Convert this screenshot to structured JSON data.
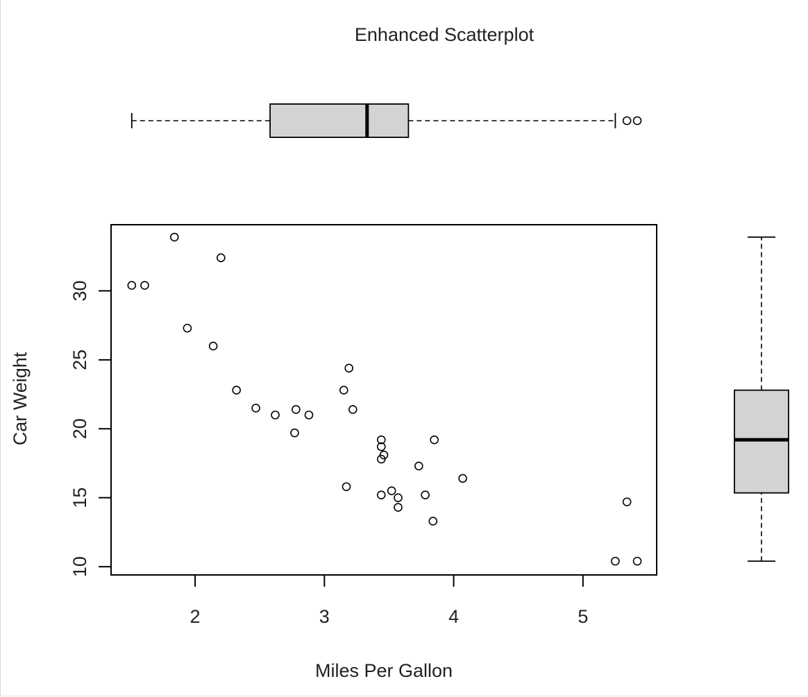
{
  "chart_data": {
    "type": "scatter",
    "title": "Enhanced Scatterplot",
    "xlabel": "Miles Per Gallon",
    "ylabel": "Car Weight",
    "xlim": [
      1.35,
      5.57
    ],
    "ylim": [
      9.4,
      34.8
    ],
    "xticks": [
      2,
      3,
      4,
      5
    ],
    "yticks": [
      10,
      15,
      20,
      25,
      30
    ],
    "grid": false,
    "legend": "none",
    "series": [
      {
        "points": [
          [
            1.51,
            30.4
          ],
          [
            1.61,
            30.4
          ],
          [
            1.84,
            33.9
          ],
          [
            1.94,
            27.3
          ],
          [
            2.14,
            26.0
          ],
          [
            2.2,
            32.4
          ],
          [
            2.32,
            22.8
          ],
          [
            2.47,
            21.5
          ],
          [
            2.62,
            21.0
          ],
          [
            2.77,
            19.7
          ],
          [
            2.78,
            21.4
          ],
          [
            2.88,
            21.0
          ],
          [
            3.15,
            22.8
          ],
          [
            3.17,
            15.8
          ],
          [
            3.19,
            24.4
          ],
          [
            3.22,
            21.4
          ],
          [
            3.44,
            19.2
          ],
          [
            3.44,
            18.7
          ],
          [
            3.44,
            17.8
          ],
          [
            3.44,
            15.2
          ],
          [
            3.46,
            18.1
          ],
          [
            3.52,
            15.5
          ],
          [
            3.57,
            15.0
          ],
          [
            3.57,
            14.3
          ],
          [
            3.73,
            17.3
          ],
          [
            3.78,
            15.2
          ],
          [
            3.84,
            13.3
          ],
          [
            3.85,
            19.2
          ],
          [
            4.07,
            16.4
          ],
          [
            5.25,
            10.4
          ],
          [
            5.34,
            14.7
          ],
          [
            5.42,
            10.4
          ]
        ]
      }
    ],
    "x_boxplot": {
      "min": 1.51,
      "q1": 2.58,
      "median": 3.33,
      "q3": 3.65,
      "max": 5.25,
      "outliers": [
        5.34,
        5.42
      ]
    },
    "y_boxplot": {
      "min": 10.4,
      "q1": 15.35,
      "median": 19.2,
      "q3": 22.8,
      "max": 33.9,
      "outliers": []
    }
  }
}
